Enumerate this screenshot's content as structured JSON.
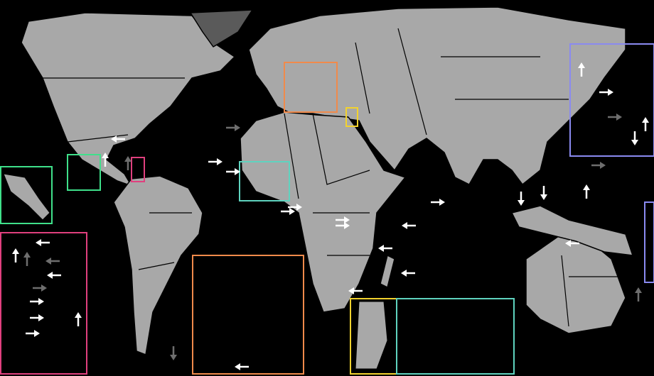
{
  "colors": {
    "background": "#000000",
    "land": "#a8a8a8",
    "highlight_territory": "#5a5a5a",
    "borders": "#000000",
    "arrow_primary": "#ffffff",
    "arrow_secondary": "#6e6e6e"
  },
  "insets": [
    {
      "region": "europe",
      "color": "#f08a4b"
    },
    {
      "region": "levant",
      "color": "#f2d22e"
    },
    {
      "region": "central-america",
      "color": "#3fe08a"
    },
    {
      "region": "caribbean-islands",
      "color": "#3fe08a"
    },
    {
      "region": "lesser-antilles",
      "color": "#e0407e"
    },
    {
      "region": "west-africa",
      "color": "#5fd3bf"
    },
    {
      "region": "caribbean-enlarged",
      "color": "#e0407e"
    },
    {
      "region": "europe-enlarged",
      "color": "#f08a4b"
    },
    {
      "region": "levant-enlarged",
      "color": "#f2d22e"
    },
    {
      "region": "west-africa-enlarged",
      "color": "#5fd3bf"
    },
    {
      "region": "pacific-islands",
      "color": "#8a8af0"
    },
    {
      "region": "pacific-islands-2",
      "color": "#8a8af0"
    }
  ]
}
